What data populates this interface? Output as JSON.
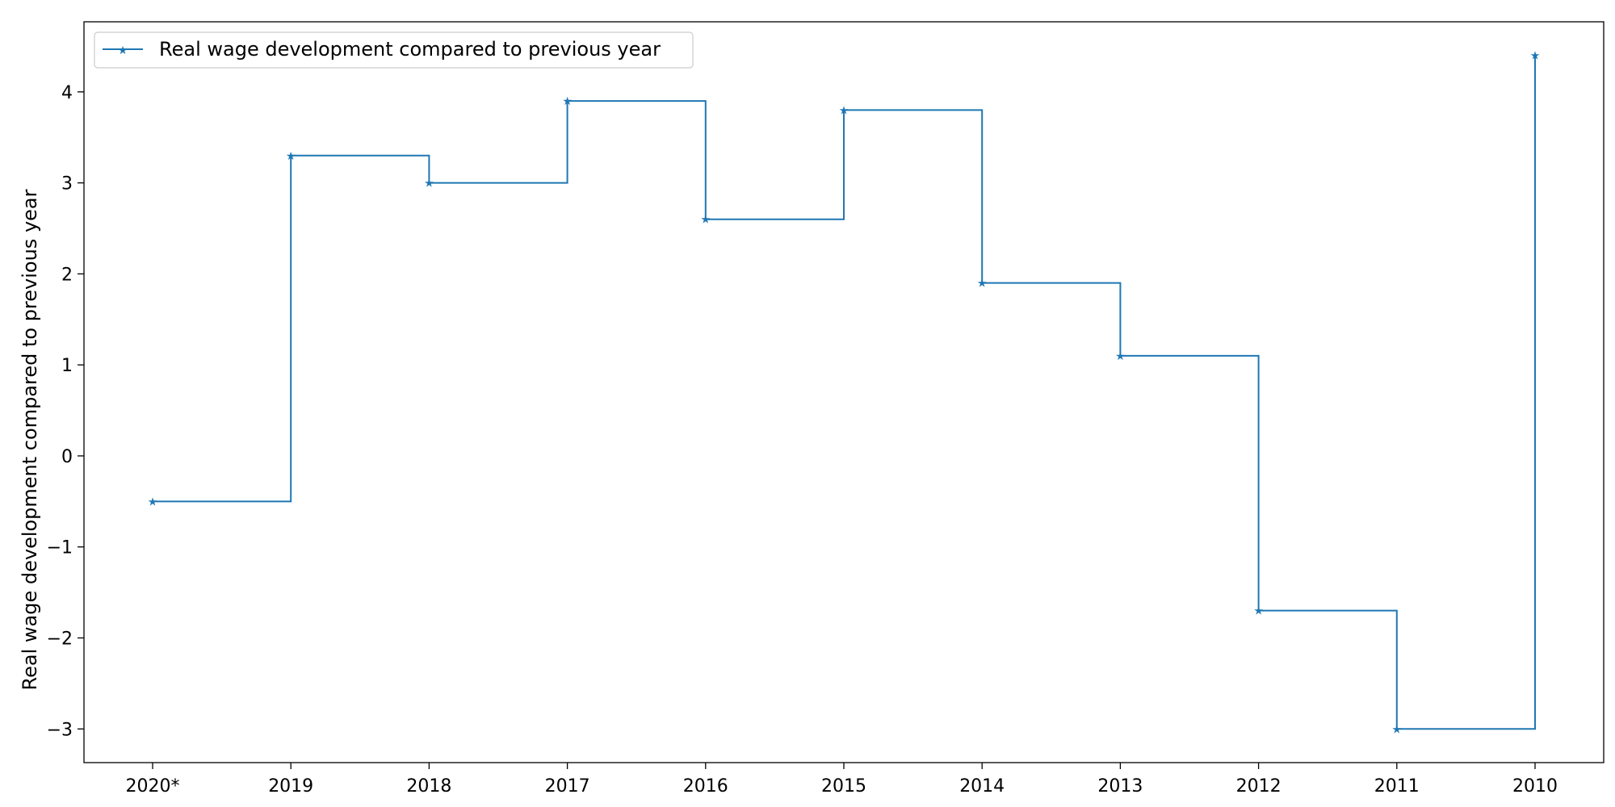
{
  "chart_data": {
    "type": "line",
    "step": "post",
    "xlabel": "",
    "ylabel": "Real wage development compared to previous year",
    "categories": [
      "2020*",
      "2019",
      "2018",
      "2017",
      "2016",
      "2015",
      "2014",
      "2013",
      "2012",
      "2011",
      "2010"
    ],
    "series": [
      {
        "name": "Real wage development compared to previous year",
        "values": [
          -0.5,
          3.3,
          3.0,
          3.9,
          2.6,
          3.8,
          1.9,
          1.1,
          -1.7,
          -3.0,
          4.4
        ],
        "color": "#1f77b4",
        "marker": "star"
      }
    ],
    "ylim": [
      -3.37,
      4.77
    ],
    "yticks": [
      -3,
      -2,
      -1,
      0,
      1,
      2,
      3,
      4
    ],
    "ytick_labels": [
      "−3",
      "−2",
      "−1",
      "0",
      "1",
      "2",
      "3",
      "4"
    ],
    "legend_position": "top-left",
    "grid": false
  }
}
